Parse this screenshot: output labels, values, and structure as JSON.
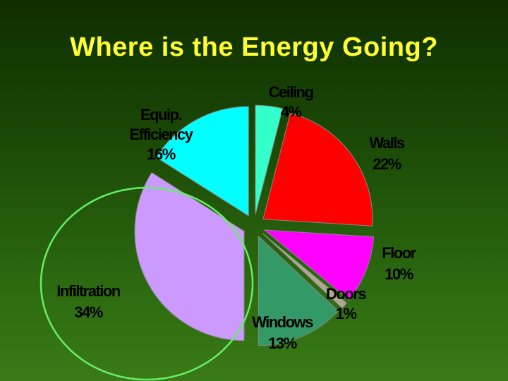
{
  "title": "Where is the Energy Going?",
  "colors": {
    "title": "#ffff33",
    "highlight_ring": "#66ee66"
  },
  "chart_data": {
    "type": "pie",
    "title": "Where is the Energy Going?",
    "exploded": true,
    "highlighted_slice": "Infiltration",
    "slices": [
      {
        "label": "Ceiling",
        "value": 4,
        "value_label": "4%",
        "color": "#33ffcc"
      },
      {
        "label": "Walls",
        "value": 22,
        "value_label": "22%",
        "color": "#ff0000"
      },
      {
        "label": "Floor",
        "value": 10,
        "value_label": "10%",
        "color": "#ff00ff"
      },
      {
        "label": "Doors",
        "value": 1,
        "value_label": "1%",
        "color": "#b0a890"
      },
      {
        "label": "Windows",
        "value": 13,
        "value_label": "13%",
        "color": "#339966"
      },
      {
        "label": "Infiltration",
        "value": 34,
        "value_label": "34%",
        "color": "#cc99ff"
      },
      {
        "label": "Equip. Efficiency",
        "value": 16,
        "value_label": "16%",
        "color": "#00ffff"
      }
    ]
  }
}
